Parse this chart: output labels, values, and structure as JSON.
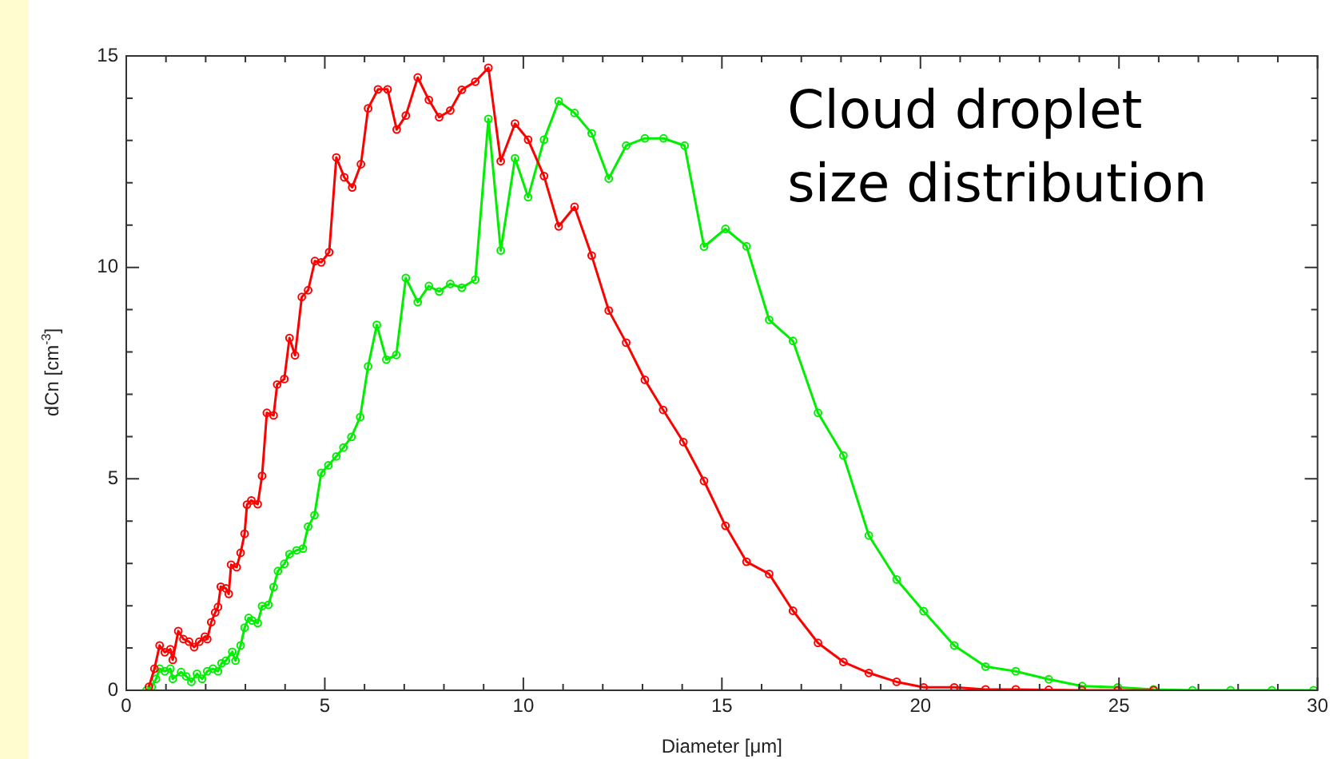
{
  "chart_data": {
    "type": "line",
    "xlabel": "Diameter [μm]",
    "ylabel": "dCn [cm$^{-3}$]",
    "annotations": [
      "Cloud droplet\nsize distribution"
    ],
    "xlim": [
      0,
      30
    ],
    "ylim": [
      0,
      15
    ],
    "xticks": [
      0,
      {
        "value": 1,
        "label": null
      },
      {
        "value": 2,
        "label": null
      },
      {
        "value": 3,
        "label": null
      },
      {
        "value": 4,
        "label": null
      },
      5,
      {
        "value": 6,
        "label": null
      },
      {
        "value": 7,
        "label": null
      },
      {
        "value": 8,
        "label": null
      },
      {
        "value": 9,
        "label": null
      },
      10,
      {
        "value": 11,
        "label": null
      },
      {
        "value": 12,
        "label": null
      },
      {
        "value": 13,
        "label": null
      },
      {
        "value": 14,
        "label": null
      },
      15,
      {
        "value": 16,
        "label": null
      },
      {
        "value": 17,
        "label": null
      },
      {
        "value": 18,
        "label": null
      },
      {
        "value": 19,
        "label": null
      },
      20,
      {
        "value": 21,
        "label": null
      },
      {
        "value": 22,
        "label": null
      },
      {
        "value": 23,
        "label": null
      },
      {
        "value": 24,
        "label": null
      },
      25,
      {
        "value": 26,
        "label": null
      },
      {
        "value": 27,
        "label": null
      },
      {
        "value": 28,
        "label": null
      },
      {
        "value": 29,
        "label": null
      },
      30
    ],
    "yticks": [
      0,
      {
        "value": 1,
        "label": null
      },
      {
        "value": 2,
        "label": null
      },
      {
        "value": 3,
        "label": null
      },
      {
        "value": 4,
        "label": null
      },
      5,
      {
        "value": 6,
        "label": null
      },
      {
        "value": 7,
        "label": null
      },
      {
        "value": 8,
        "label": null
      },
      {
        "value": 9,
        "label": null
      },
      10,
      {
        "value": 11,
        "label": null
      },
      {
        "value": 12,
        "label": null
      },
      {
        "value": 13,
        "label": null
      },
      {
        "value": 14,
        "label": null
      },
      15
    ],
    "grid": false,
    "legend": false,
    "marker": "circle",
    "line_style": "solid",
    "series": [
      {
        "color": "#ff0000",
        "x": [
          0.57,
          0.71,
          0.84,
          0.97,
          1.11,
          1.17,
          1.31,
          1.44,
          1.58,
          1.71,
          1.84,
          1.98,
          2.04,
          2.14,
          2.24,
          2.31,
          2.38,
          2.51,
          2.58,
          2.64,
          2.78,
          2.88,
          2.98,
          3.04,
          3.15,
          3.31,
          3.42,
          3.54,
          3.71,
          3.8,
          3.98,
          4.11,
          4.25,
          4.42,
          4.58,
          4.75,
          4.91,
          5.11,
          5.29,
          5.49,
          5.69,
          5.91,
          6.09,
          6.34,
          6.58,
          6.81,
          7.04,
          7.34,
          7.62,
          7.88,
          8.16,
          8.45,
          8.79,
          9.12,
          9.43,
          9.79,
          10.12,
          10.52,
          10.89,
          11.29,
          11.72,
          12.15,
          12.59,
          13.06,
          13.52,
          14.03,
          14.55,
          15.09,
          15.62,
          16.19,
          16.79,
          17.42,
          18.06,
          18.7,
          19.4,
          20.08,
          20.85,
          21.64,
          22.4,
          23.23,
          24.07,
          24.97,
          25.87
        ],
        "values": [
          0.08,
          0.51,
          1.06,
          0.9,
          0.97,
          0.72,
          1.4,
          1.21,
          1.15,
          1.02,
          1.15,
          1.27,
          1.21,
          1.61,
          1.84,
          1.97,
          2.45,
          2.41,
          2.28,
          2.97,
          2.91,
          3.25,
          3.7,
          4.39,
          4.49,
          4.4,
          5.07,
          6.56,
          6.5,
          7.23,
          7.36,
          8.33,
          7.92,
          9.3,
          9.46,
          10.15,
          10.12,
          10.36,
          12.6,
          12.13,
          11.89,
          12.44,
          13.76,
          14.21,
          14.21,
          13.26,
          13.59,
          14.49,
          13.96,
          13.55,
          13.71,
          14.2,
          14.39,
          14.72,
          12.51,
          13.4,
          13.02,
          12.16,
          10.97,
          11.43,
          10.28,
          8.98,
          8.22,
          7.34,
          6.63,
          5.87,
          4.95,
          3.89,
          3.04,
          2.75,
          1.88,
          1.12,
          0.67,
          0.41,
          0.2,
          0.07,
          0.07,
          0.02,
          0.02,
          0.01,
          0,
          0,
          0
        ]
      },
      {
        "color": "#00ee00",
        "x": [
          0.51,
          0.64,
          0.75,
          0.84,
          0.97,
          1.11,
          1.17,
          1.38,
          1.51,
          1.64,
          1.78,
          1.91,
          2.04,
          2.18,
          2.31,
          2.4,
          2.51,
          2.67,
          2.75,
          2.88,
          2.98,
          3.08,
          3.17,
          3.31,
          3.42,
          3.58,
          3.71,
          3.82,
          3.98,
          4.11,
          4.29,
          4.45,
          4.58,
          4.74,
          4.91,
          5.09,
          5.29,
          5.47,
          5.67,
          5.89,
          6.09,
          6.31,
          6.55,
          6.8,
          7.04,
          7.34,
          7.62,
          7.88,
          8.16,
          8.45,
          8.79,
          9.12,
          9.43,
          9.79,
          10.12,
          10.52,
          10.89,
          11.29,
          11.72,
          12.15,
          12.59,
          13.06,
          13.53,
          14.06,
          14.55,
          15.09,
          15.62,
          16.19,
          16.79,
          17.42,
          18.06,
          18.7,
          19.4,
          20.08,
          20.85,
          21.64,
          22.4,
          23.23,
          24.07,
          24.97,
          25.87,
          26.85,
          27.81,
          28.85,
          29.9
        ],
        "values": [
          0,
          0.08,
          0.27,
          0.51,
          0.45,
          0.51,
          0.27,
          0.43,
          0.33,
          0.2,
          0.39,
          0.27,
          0.45,
          0.51,
          0.45,
          0.64,
          0.7,
          0.91,
          0.7,
          1.06,
          1.48,
          1.71,
          1.65,
          1.59,
          1.99,
          2.02,
          2.44,
          2.82,
          2.99,
          3.22,
          3.31,
          3.35,
          3.87,
          4.14,
          5.14,
          5.32,
          5.53,
          5.74,
          5.99,
          6.46,
          7.66,
          8.64,
          7.82,
          7.93,
          9.75,
          9.18,
          9.56,
          9.43,
          9.61,
          9.52,
          9.71,
          13.51,
          10.4,
          12.58,
          11.66,
          13.02,
          13.93,
          13.65,
          13.17,
          12.1,
          12.88,
          13.05,
          13.05,
          12.88,
          10.49,
          10.91,
          10.5,
          8.76,
          8.26,
          6.56,
          5.55,
          3.66,
          2.62,
          1.87,
          1.06,
          0.56,
          0.45,
          0.26,
          0.1,
          0.07,
          0.02,
          0,
          0,
          0,
          0
        ]
      }
    ]
  }
}
